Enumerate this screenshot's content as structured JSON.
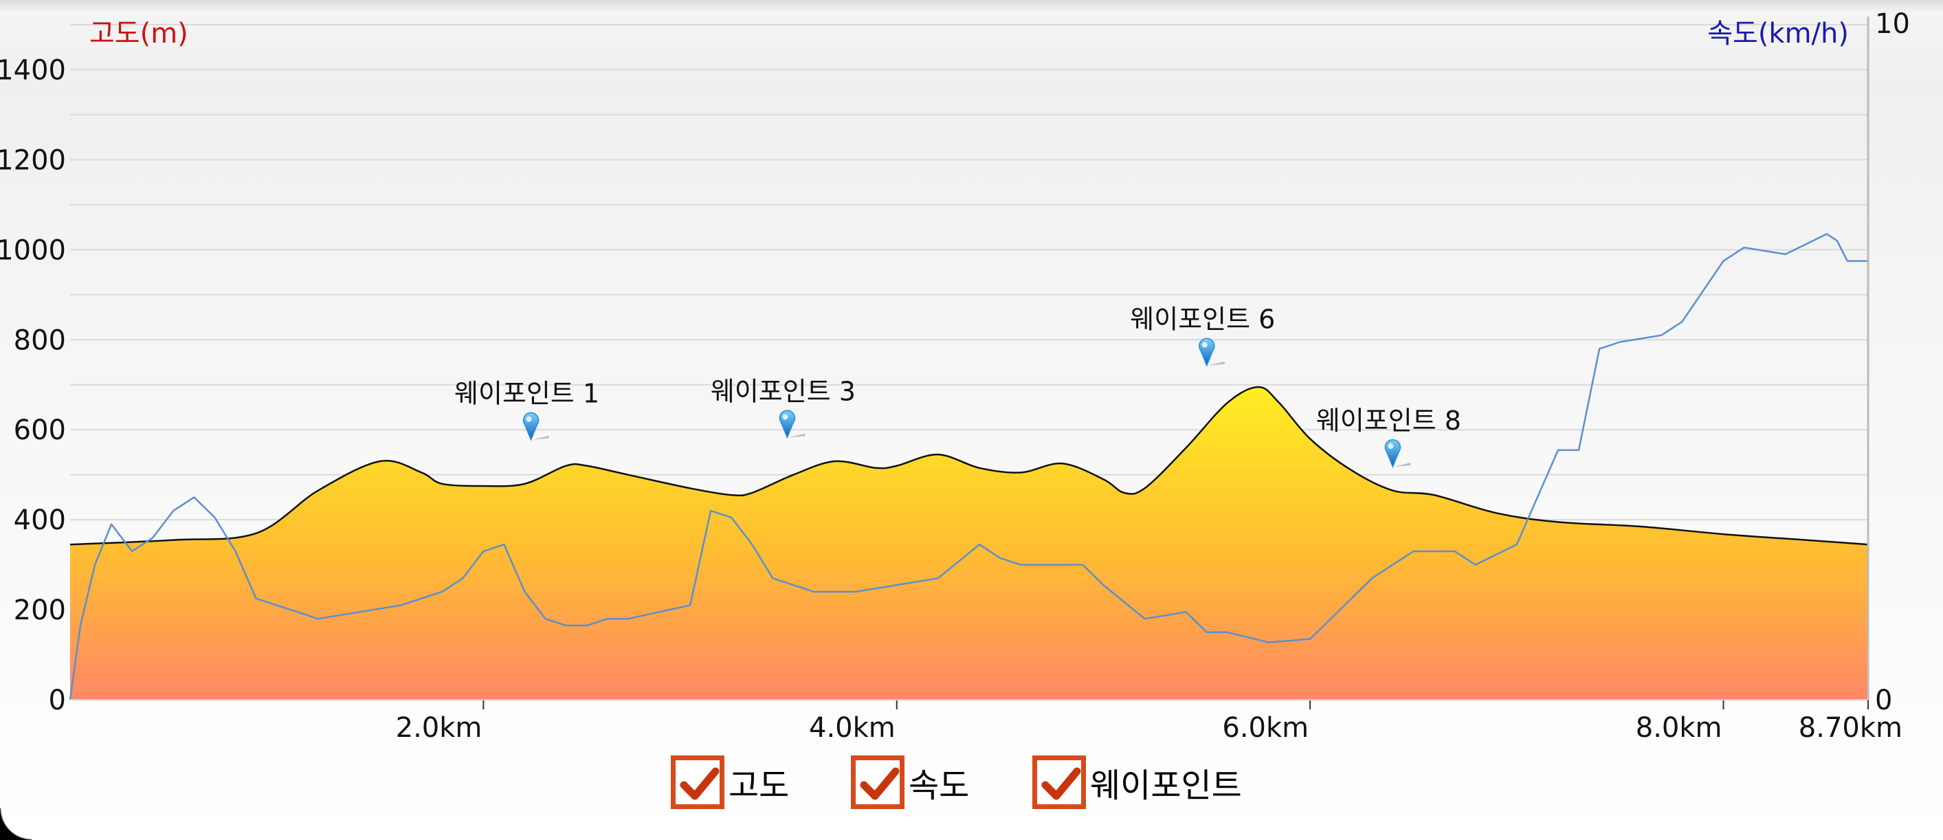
{
  "chart_data": {
    "type": "area",
    "left_axis": {
      "label": "고도(m)",
      "color": "#cc1111",
      "ylim": [
        0,
        1500
      ],
      "ticks": [
        0,
        200,
        400,
        600,
        800,
        1000,
        1200,
        1400
      ]
    },
    "right_axis": {
      "label": "속도(km/h)",
      "color": "#1a1aaa",
      "ylim": [
        0,
        10
      ],
      "ticks": [
        0,
        10
      ]
    },
    "x_axis": {
      "xlim": [
        0,
        8.7
      ],
      "ticks": [
        {
          "x": 2.0,
          "label": "2.0km"
        },
        {
          "x": 4.0,
          "label": "4.0km"
        },
        {
          "x": 6.0,
          "label": "6.0km"
        },
        {
          "x": 8.0,
          "label": "8.0km"
        },
        {
          "x": 8.7,
          "label": "8.70km"
        }
      ]
    },
    "grid": true,
    "series": [
      {
        "name": "고도",
        "axis": "left",
        "x": [
          0,
          0.5,
          0.9,
          1.2,
          1.5,
          1.7,
          1.8,
          2.0,
          2.2,
          2.4,
          2.5,
          2.7,
          3.0,
          3.2,
          3.3,
          3.5,
          3.7,
          3.9,
          4.0,
          4.2,
          4.4,
          4.6,
          4.8,
          5.0,
          5.1,
          5.2,
          5.4,
          5.6,
          5.75,
          5.85,
          6.0,
          6.2,
          6.4,
          6.6,
          6.9,
          7.2,
          7.6,
          8.0,
          8.4,
          8.7
        ],
        "values": [
          345,
          355,
          370,
          465,
          530,
          505,
          480,
          475,
          480,
          520,
          520,
          500,
          470,
          455,
          460,
          500,
          530,
          515,
          520,
          545,
          515,
          505,
          525,
          490,
          460,
          470,
          560,
          660,
          695,
          660,
          580,
          510,
          465,
          455,
          415,
          395,
          385,
          368,
          355,
          345
        ]
      },
      {
        "name": "속도",
        "axis": "right",
        "x": [
          0.0,
          0.05,
          0.12,
          0.2,
          0.3,
          0.4,
          0.5,
          0.6,
          0.7,
          0.8,
          0.9,
          1.0,
          1.1,
          1.2,
          1.4,
          1.6,
          1.8,
          1.9,
          2.0,
          2.1,
          2.2,
          2.3,
          2.4,
          2.5,
          2.6,
          2.7,
          3.0,
          3.1,
          3.2,
          3.3,
          3.4,
          3.5,
          3.6,
          3.8,
          4.0,
          4.2,
          4.4,
          4.5,
          4.6,
          4.7,
          4.9,
          5.0,
          5.2,
          5.4,
          5.5,
          5.6,
          5.8,
          6.0,
          6.2,
          6.3,
          6.4,
          6.5,
          6.7,
          6.8,
          7.0,
          7.2,
          7.3,
          7.4,
          7.5,
          7.7,
          7.8,
          8.0,
          8.1,
          8.3,
          8.5,
          8.55,
          8.6,
          8.7
        ],
        "values": [
          0,
          1.1,
          2.0,
          2.6,
          2.2,
          2.4,
          2.8,
          3.0,
          2.7,
          2.2,
          1.5,
          1.4,
          1.3,
          1.2,
          1.3,
          1.4,
          1.6,
          1.8,
          2.2,
          2.3,
          1.6,
          1.2,
          1.1,
          1.1,
          1.2,
          1.2,
          1.4,
          2.8,
          2.7,
          2.3,
          1.8,
          1.7,
          1.6,
          1.6,
          1.7,
          1.8,
          2.3,
          2.1,
          2.0,
          2.0,
          2.0,
          1.7,
          1.2,
          1.3,
          1.0,
          1.0,
          0.85,
          0.9,
          1.5,
          1.8,
          2.0,
          2.2,
          2.2,
          2.0,
          2.3,
          3.7,
          3.7,
          5.2,
          5.3,
          5.4,
          5.6,
          6.5,
          6.7,
          6.6,
          6.9,
          6.8,
          6.5,
          6.5
        ]
      }
    ],
    "waypoints": [
      {
        "name": "웨이포인트 1",
        "x": 2.23,
        "elev": 590
      },
      {
        "name": "웨이포인트 3",
        "x": 3.47,
        "elev": 595
      },
      {
        "name": "웨이포인트 6",
        "x": 5.5,
        "elev": 755
      },
      {
        "name": "웨이포인트 8",
        "x": 6.4,
        "elev": 530
      }
    ]
  },
  "legend": [
    {
      "label": "고도",
      "checked": true
    },
    {
      "label": "속도",
      "checked": true
    },
    {
      "label": "웨이포인트",
      "checked": true
    }
  ],
  "colors": {
    "check_border": "#d64b1c",
    "check_mark": "#c8350c",
    "elev_top": "#ffee22",
    "elev_bottom": "#ff8866",
    "speed_line": "#5b8fd0",
    "marker": "#1f8fe0"
  }
}
